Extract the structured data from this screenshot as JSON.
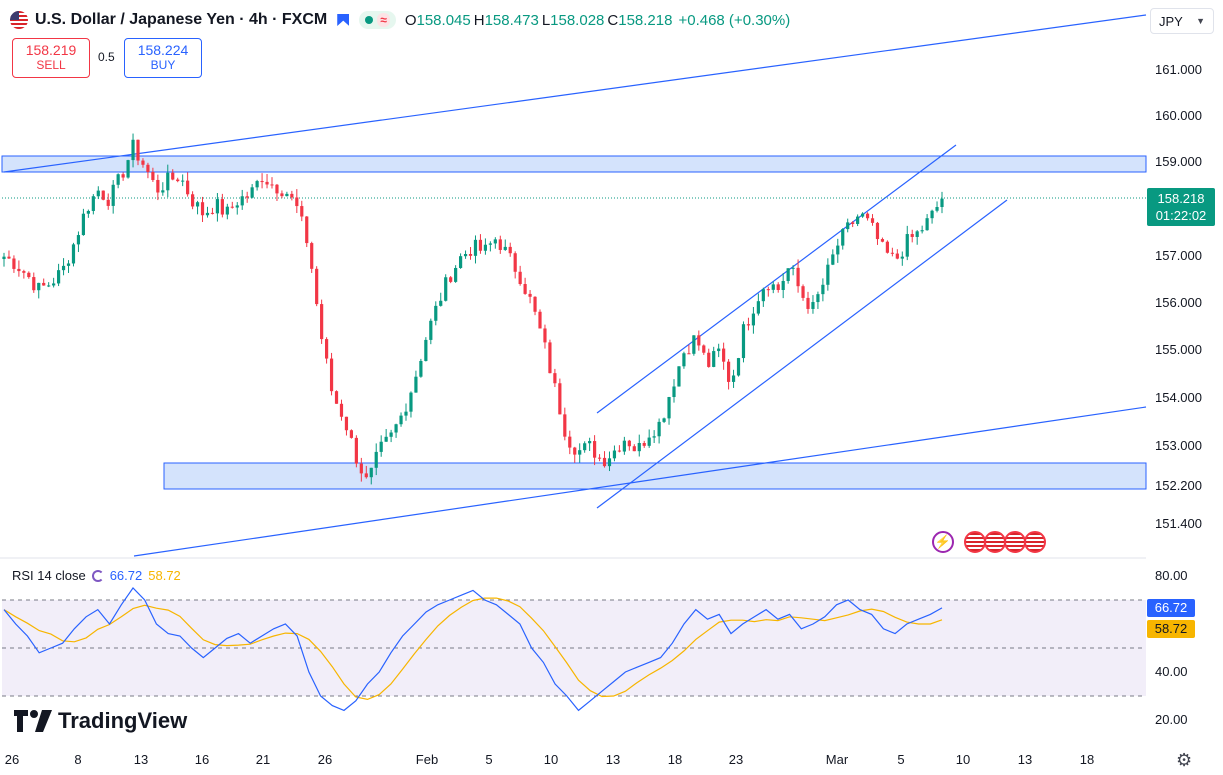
{
  "header": {
    "title": "U.S. Dollar / Japanese Yen · 4h · FXCM",
    "open_label": "O",
    "open": "158.045",
    "high_label": "H",
    "high": "158.473",
    "low_label": "L",
    "low": "158.028",
    "close_label": "C",
    "close": "158.218",
    "change": "+0.468 (+0.30%)",
    "wave_icon": "≈"
  },
  "trade": {
    "sell_price": "158.219",
    "sell_label": "SELL",
    "spread": "0.5",
    "buy_price": "158.224",
    "buy_label": "BUY"
  },
  "currency_selector": "JPY",
  "price_tag": {
    "price": "158.218",
    "countdown": "01:22:02"
  },
  "rsi": {
    "label": "RSI 14 close",
    "value": "66.72",
    "ma_value": "58.72"
  },
  "branding": "TradingView",
  "colors": {
    "up": "#089981",
    "down": "#f23645",
    "accent": "#2962ff",
    "rsi_ma": "#f7b500",
    "zone": "#c5d9fb"
  },
  "icons": {
    "gear": "settings-gear-icon",
    "event_bolt": "lightning-icon",
    "event_flag": "us-flag-icon"
  },
  "chart_data": {
    "type": "candlestick",
    "timeframe": "4h",
    "y_axis_ticks": [
      "161.000",
      "160.000",
      "159.000",
      "157.000",
      "156.000",
      "155.000",
      "154.000",
      "153.000",
      "152.200",
      "151.400"
    ],
    "x_axis_ticks": [
      "26",
      "8",
      "13",
      "16",
      "21",
      "26",
      "Feb",
      "5",
      "10",
      "13",
      "18",
      "23",
      "Mar",
      "5",
      "10",
      "13",
      "18"
    ],
    "ylim": [
      151.0,
      161.6
    ],
    "close_path": [
      157.0,
      156.85,
      156.6,
      156.3,
      156.45,
      156.7,
      157.3,
      158.0,
      158.4,
      158.2,
      158.7,
      159.3,
      158.9,
      158.4,
      158.6,
      158.7,
      158.2,
      157.9,
      158.1,
      157.9,
      158.2,
      158.3,
      158.7,
      158.5,
      158.4,
      158.0,
      157.2,
      155.4,
      154.1,
      153.6,
      152.8,
      152.2,
      152.9,
      153.2,
      153.7,
      154.4,
      155.3,
      156.0,
      156.6,
      157.0,
      157.2,
      157.1,
      157.4,
      157.0,
      156.6,
      156.0,
      155.2,
      154.2,
      153.2,
      152.9,
      153.0,
      152.7,
      152.9,
      153.2,
      152.9,
      153.3,
      153.5,
      154.3,
      155.0,
      155.3,
      154.7,
      155.0,
      154.3,
      155.4,
      156.0,
      156.5,
      156.3,
      156.8,
      156.2,
      155.9,
      156.5,
      157.2,
      157.6,
      157.9,
      157.6,
      157.1,
      156.9,
      157.3,
      157.5,
      157.8,
      158.218
    ],
    "rsi_values": [
      66,
      60,
      55,
      48,
      50,
      52,
      58,
      63,
      66,
      60,
      68,
      75,
      70,
      60,
      56,
      55,
      50,
      46,
      50,
      54,
      56,
      52,
      55,
      58,
      60,
      55,
      40,
      30,
      26,
      24,
      28,
      35,
      40,
      48,
      55,
      60,
      65,
      68,
      70,
      72,
      74,
      70,
      68,
      64,
      60,
      50,
      44,
      35,
      30,
      24,
      28,
      32,
      36,
      40,
      42,
      44,
      46,
      52,
      60,
      66,
      62,
      64,
      56,
      60,
      63,
      66,
      62,
      64,
      58,
      60,
      63,
      68,
      70,
      66,
      64,
      58,
      56,
      60,
      62,
      64,
      66.72
    ],
    "rsi_ylim": [
      10,
      90
    ],
    "rsi_ticks": [
      "80.00",
      "40.00",
      "20.00"
    ],
    "rsi_bands": [
      70,
      50,
      30
    ],
    "zones": [
      {
        "from": 158.8,
        "to": 159.1
      },
      {
        "from": 152.1,
        "to": 152.65
      }
    ]
  }
}
